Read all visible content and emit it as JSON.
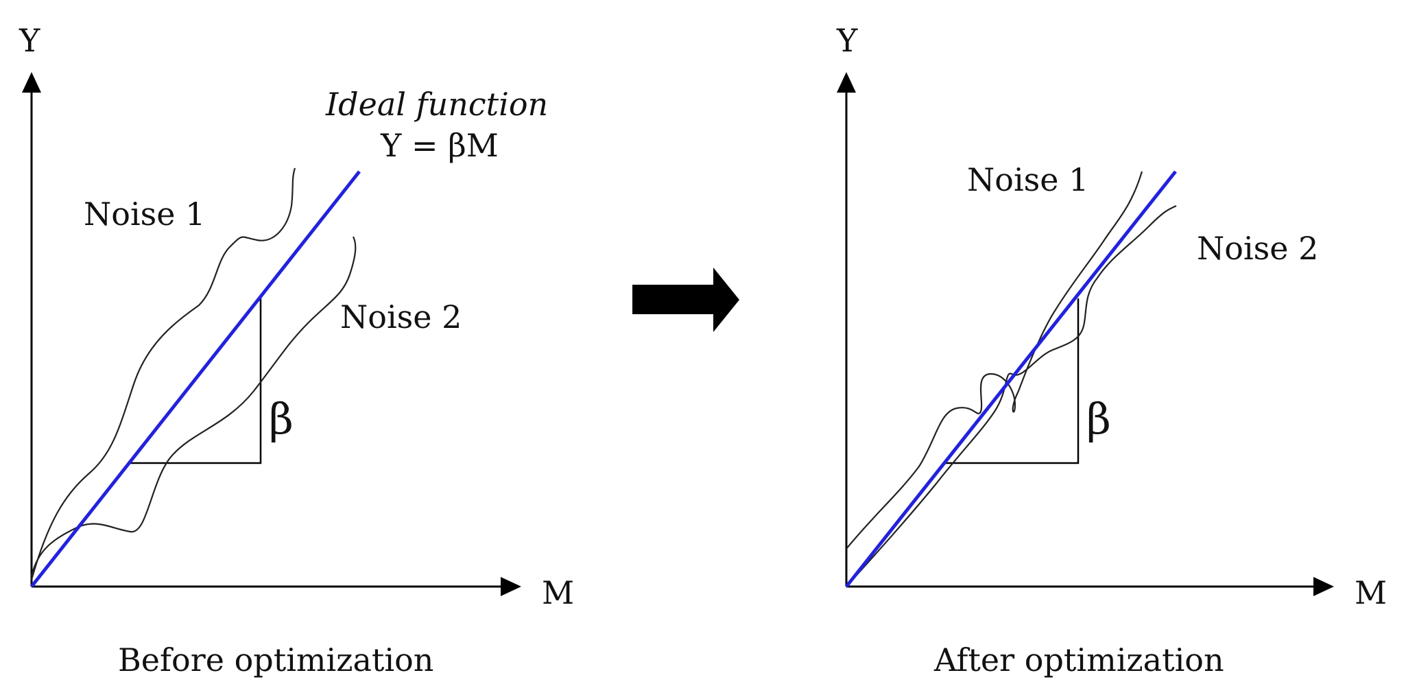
{
  "left_panel": {
    "y_axis_label": "Y",
    "x_axis_label": "M",
    "ideal_title": "Ideal function",
    "ideal_equation": "Y = βM",
    "noise1_label": "Noise 1",
    "noise2_label": "Noise 2",
    "slope_label": "β",
    "caption": "Before optimization"
  },
  "right_panel": {
    "y_axis_label": "Y",
    "x_axis_label": "M",
    "noise1_label": "Noise 1",
    "noise2_label": "Noise 2",
    "slope_label": "β",
    "caption": "After optimization"
  },
  "colors": {
    "ideal_line": "#2222dd",
    "noise_lines": "#222222",
    "axes": "#000000"
  },
  "icons": {
    "transition": "right-arrow-icon"
  }
}
